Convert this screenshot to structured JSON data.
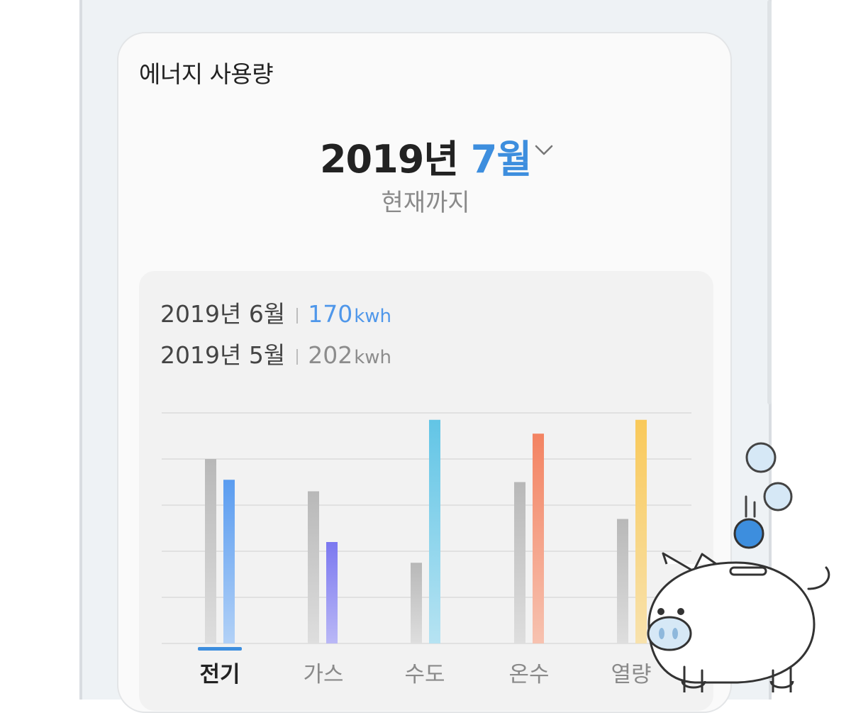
{
  "card": {
    "title": "에너지 사용량"
  },
  "date": {
    "year_label": "2019년",
    "month_label": "7월",
    "subtitle": "현재까지"
  },
  "comparison": [
    {
      "period": "2019년 6월",
      "value": "170",
      "unit": "kwh"
    },
    {
      "period": "2019년 5월",
      "value": "202",
      "unit": "kwh"
    }
  ],
  "tabs": [
    {
      "label": "전기",
      "active": true
    },
    {
      "label": "가스",
      "active": false
    },
    {
      "label": "수도",
      "active": false
    },
    {
      "label": "온수",
      "active": false
    },
    {
      "label": "열량",
      "active": false
    }
  ],
  "colors": {
    "accent": "#3d8ede",
    "previous_bar": "#b8b8b8",
    "electricity": "#5a9cf0",
    "gas": "#7b78f0",
    "water": "#62c5e6",
    "hot_water": "#f38362",
    "heat": "#f9c95a"
  },
  "chart_data": {
    "type": "bar",
    "categories": [
      "전기",
      "가스",
      "수도",
      "온수",
      "열량"
    ],
    "ylim": [
      0,
      100
    ],
    "grid": true,
    "series": [
      {
        "values": [
          80,
          66,
          35,
          70,
          54
        ]
      },
      {
        "values": [
          71,
          44,
          97,
          91,
          97
        ]
      }
    ]
  },
  "illustration": {
    "icon": "piggy-bank-icon"
  }
}
